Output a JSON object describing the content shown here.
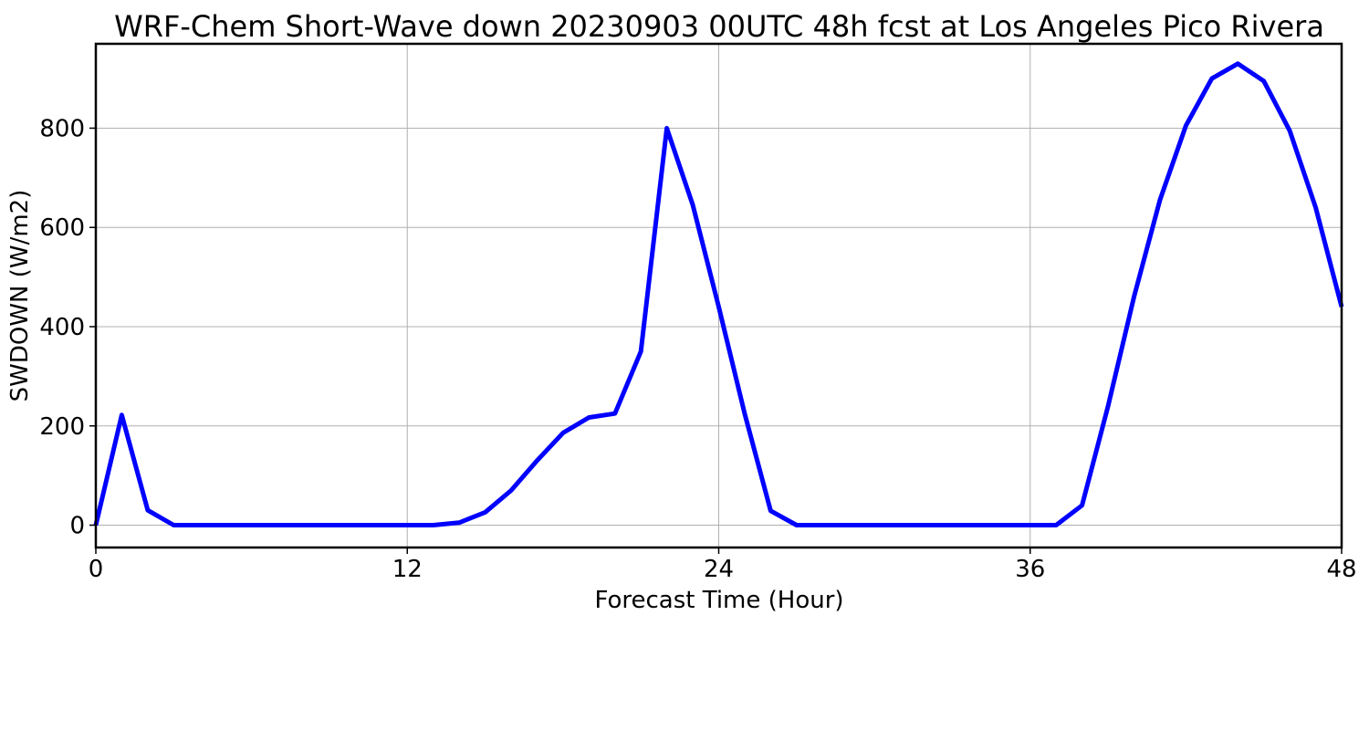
{
  "chart_data": {
    "type": "line",
    "title": "WRF-Chem Short-Wave down  20230903 00UTC 48h fcst at Los Angeles Pico Rivera",
    "xlabel": "Forecast Time (Hour)",
    "ylabel": "SWDOWN  (W/m2)",
    "xlim": [
      0,
      48
    ],
    "ylim": [
      -45,
      970
    ],
    "xticks": [
      0,
      12,
      24,
      36,
      48
    ],
    "yticks": [
      0,
      200,
      400,
      600,
      800
    ],
    "grid": true,
    "series": [
      {
        "color": "#0000ff",
        "x": [
          0,
          1,
          2,
          3,
          4,
          5,
          6,
          7,
          8,
          9,
          10,
          11,
          12,
          13,
          14,
          15,
          16,
          17,
          18,
          19,
          20,
          21,
          22,
          23,
          24,
          25,
          26,
          27,
          28,
          29,
          30,
          31,
          32,
          33,
          34,
          35,
          36,
          37,
          38,
          39,
          40,
          41,
          42,
          43,
          44,
          45,
          46,
          47,
          48
        ],
        "y": [
          0,
          222,
          30,
          0,
          0,
          0,
          0,
          0,
          0,
          0,
          0,
          0,
          0,
          0,
          5,
          26,
          70,
          130,
          186,
          217,
          225,
          350,
          800,
          645,
          440,
          225,
          29,
          0,
          0,
          0,
          0,
          0,
          0,
          0,
          0,
          0,
          0,
          0,
          40,
          240,
          460,
          655,
          805,
          900,
          930,
          895,
          795,
          640,
          440
        ]
      }
    ]
  }
}
